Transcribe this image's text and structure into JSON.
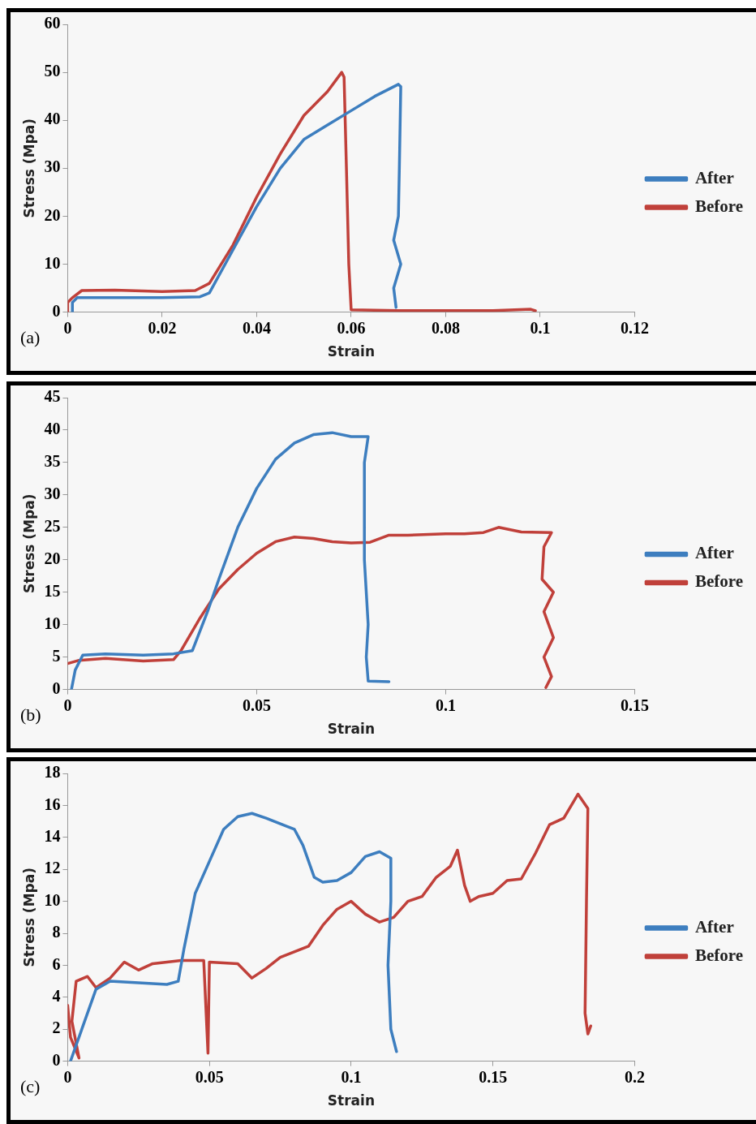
{
  "chart_data": [
    {
      "type": "line",
      "xlabel": "Strain",
      "ylabel": "Stress (Mpa)",
      "annotations": [
        "(a)"
      ],
      "xlim": [
        0,
        0.12
      ],
      "xticks": [
        0,
        0.02,
        0.04,
        0.06,
        0.08,
        0.1,
        0.12
      ],
      "ylim": [
        0,
        60
      ],
      "yticks": [
        0,
        10,
        20,
        30,
        40,
        50,
        60
      ],
      "grid": false,
      "legend": "right",
      "marker": "none",
      "series": [
        {
          "name": "After",
          "color": "#3d7ebf",
          "x": [
            0.001,
            0.001,
            0.002,
            0.01,
            0.02,
            0.028,
            0.03,
            0.035,
            0.04,
            0.045,
            0.05,
            0.055,
            0.06,
            0.065,
            0.07,
            0.0705,
            0.0702,
            0.07,
            0.069,
            0.0705,
            0.069,
            0.0695
          ],
          "values": [
            0,
            2,
            3,
            3,
            3,
            3.2,
            4,
            13,
            22,
            30,
            36,
            39,
            42,
            45,
            47.5,
            47,
            30,
            20,
            15,
            10,
            5,
            1
          ]
        },
        {
          "name": "Before",
          "color": "#c0403a",
          "x": [
            0,
            0,
            0.001,
            0.003,
            0.01,
            0.02,
            0.027,
            0.03,
            0.035,
            0.04,
            0.045,
            0.05,
            0.055,
            0.058,
            0.0585,
            0.059,
            0.0595,
            0.06,
            0.07,
            0.09,
            0.098,
            0.099
          ],
          "values": [
            0,
            2,
            3,
            4.5,
            4.6,
            4.3,
            4.5,
            6,
            14,
            24,
            33,
            41,
            46,
            50,
            49,
            30,
            10,
            0.5,
            0.3,
            0.3,
            0.6,
            0.3
          ]
        }
      ]
    },
    {
      "type": "line",
      "xlabel": "Strain",
      "ylabel": "Stress (Mpa)",
      "annotations": [
        "(b)"
      ],
      "xlim": [
        0,
        0.15
      ],
      "xticks": [
        0,
        0.05,
        0.1,
        0.15
      ],
      "ylim": [
        0,
        45
      ],
      "yticks": [
        0,
        5,
        10,
        15,
        20,
        25,
        30,
        35,
        40,
        45
      ],
      "grid": false,
      "legend": "right",
      "marker": "none",
      "series": [
        {
          "name": "After",
          "color": "#3d7ebf",
          "x": [
            0.001,
            0.002,
            0.004,
            0.01,
            0.02,
            0.028,
            0.033,
            0.037,
            0.04,
            0.045,
            0.05,
            0.055,
            0.06,
            0.065,
            0.07,
            0.075,
            0.0795,
            0.0785,
            0.0785,
            0.0795,
            0.079,
            0.0795,
            0.085
          ],
          "values": [
            0,
            3,
            5.3,
            5.5,
            5.3,
            5.5,
            6,
            12,
            17,
            25,
            31,
            35.5,
            38,
            39.3,
            39.6,
            39,
            39,
            35,
            20,
            10,
            5,
            1.3,
            1.2
          ]
        },
        {
          "name": "Before",
          "color": "#c0403a",
          "x": [
            0,
            0.003,
            0.01,
            0.02,
            0.028,
            0.03,
            0.035,
            0.04,
            0.045,
            0.05,
            0.055,
            0.06,
            0.065,
            0.07,
            0.075,
            0.08,
            0.085,
            0.09,
            0.1,
            0.105,
            0.11,
            0.114,
            0.12,
            0.128,
            0.126,
            0.1255,
            0.1285,
            0.126,
            0.1285,
            0.126,
            0.128,
            0.1265
          ],
          "values": [
            4,
            4.5,
            4.8,
            4.4,
            4.6,
            6,
            11,
            15.5,
            18.5,
            21,
            22.8,
            23.5,
            23.3,
            22.8,
            22.6,
            22.7,
            23.8,
            23.8,
            24,
            24,
            24.2,
            25,
            24.3,
            24.2,
            22,
            17,
            15,
            12,
            8,
            5,
            2,
            0.3
          ]
        }
      ]
    },
    {
      "type": "line",
      "xlabel": "Strain",
      "ylabel": "Stress (Mpa)",
      "annotations": [
        "(c)"
      ],
      "xlim": [
        0,
        0.2
      ],
      "xticks": [
        0,
        0.05,
        0.1,
        0.15,
        0.2
      ],
      "ylim": [
        0,
        18
      ],
      "yticks": [
        0,
        2,
        4,
        6,
        8,
        10,
        12,
        14,
        16,
        18
      ],
      "grid": false,
      "legend": "right",
      "marker": "none",
      "series": [
        {
          "name": "After",
          "color": "#3d7ebf",
          "x": [
            0.001,
            0.005,
            0.01,
            0.015,
            0.025,
            0.035,
            0.039,
            0.041,
            0.045,
            0.05,
            0.055,
            0.06,
            0.065,
            0.07,
            0.08,
            0.083,
            0.087,
            0.09,
            0.095,
            0.1,
            0.105,
            0.11,
            0.114,
            0.114,
            0.113,
            0.114,
            0.116
          ],
          "values": [
            0,
            2,
            4.5,
            5,
            4.9,
            4.8,
            5,
            7,
            10.5,
            12.5,
            14.5,
            15.3,
            15.5,
            15.2,
            14.5,
            13.5,
            11.5,
            11.2,
            11.3,
            11.8,
            12.8,
            13.1,
            12.7,
            10,
            6,
            2,
            0.6
          ]
        },
        {
          "name": "Before",
          "color": "#c0403a",
          "x": [
            0,
            0.001,
            0.004,
            0.0015,
            0.003,
            0.007,
            0.01,
            0.015,
            0.02,
            0.025,
            0.03,
            0.04,
            0.048,
            0.0495,
            0.05,
            0.06,
            0.065,
            0.07,
            0.075,
            0.085,
            0.09,
            0.095,
            0.1,
            0.105,
            0.11,
            0.115,
            0.12,
            0.125,
            0.13,
            0.135,
            0.1375,
            0.14,
            0.142,
            0.145,
            0.15,
            0.155,
            0.16,
            0.165,
            0.17,
            0.175,
            0.18,
            0.1835,
            0.183,
            0.1825,
            0.1835,
            0.1845
          ],
          "values": [
            3.5,
            1.5,
            0.2,
            2.5,
            5,
            5.3,
            4.6,
            5.2,
            6.2,
            5.7,
            6.1,
            6.3,
            6.3,
            0.5,
            6.2,
            6.1,
            5.2,
            5.8,
            6.5,
            7.2,
            8.5,
            9.5,
            10,
            9.2,
            8.7,
            9,
            10,
            10.3,
            11.5,
            12.2,
            13.2,
            11,
            10,
            10.3,
            10.5,
            11.3,
            11.4,
            13,
            14.8,
            15.2,
            16.7,
            15.8,
            10,
            3,
            1.7,
            2.2
          ]
        }
      ]
    }
  ]
}
